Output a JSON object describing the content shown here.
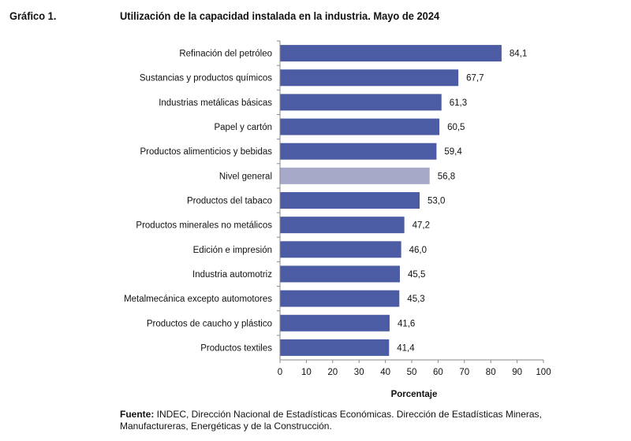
{
  "figure_label": "Gráfico 1.",
  "chart_data": {
    "type": "bar",
    "orientation": "horizontal",
    "title": "Utilización de la capacidad instalada en la industria. Mayo de 2024",
    "xlabel": "Porcentaje",
    "ylabel": "",
    "xlim": [
      0,
      100
    ],
    "xticks": [
      "0",
      "10",
      "20",
      "30",
      "40",
      "50",
      "60",
      "70",
      "80",
      "90",
      "100"
    ],
    "grid": false,
    "categories": [
      "Refinación del petróleo",
      "Sustancias y productos químicos",
      "Industrias metálicas básicas",
      "Papel y cartón",
      "Productos alimenticios y bebidas",
      "Nivel general",
      "Productos del tabaco",
      "Productos minerales no metálicos",
      "Edición e impresión",
      "Industria automotriz",
      "Metalmecánica excepto automotores",
      "Productos de caucho y plástico",
      "Productos textiles"
    ],
    "values": [
      84.1,
      67.7,
      61.3,
      60.5,
      59.4,
      56.8,
      53.0,
      47.2,
      46.0,
      45.5,
      45.3,
      41.6,
      41.4
    ],
    "value_labels": [
      "84,1",
      "67,7",
      "61,3",
      "60,5",
      "59,4",
      "56,8",
      "53,0",
      "47,2",
      "46,0",
      "45,5",
      "45,3",
      "41,6",
      "41,4"
    ],
    "highlight_category": "Nivel general",
    "colors": {
      "bar": "#4b5ca4",
      "highlight": "#a7a9c9"
    }
  },
  "source": {
    "label": "Fuente:",
    "text": " INDEC, Dirección Nacional de Estadísticas Económicas. Dirección de Estadísticas Mineras, Manufactureras, Energéticas y de la Construcción."
  }
}
